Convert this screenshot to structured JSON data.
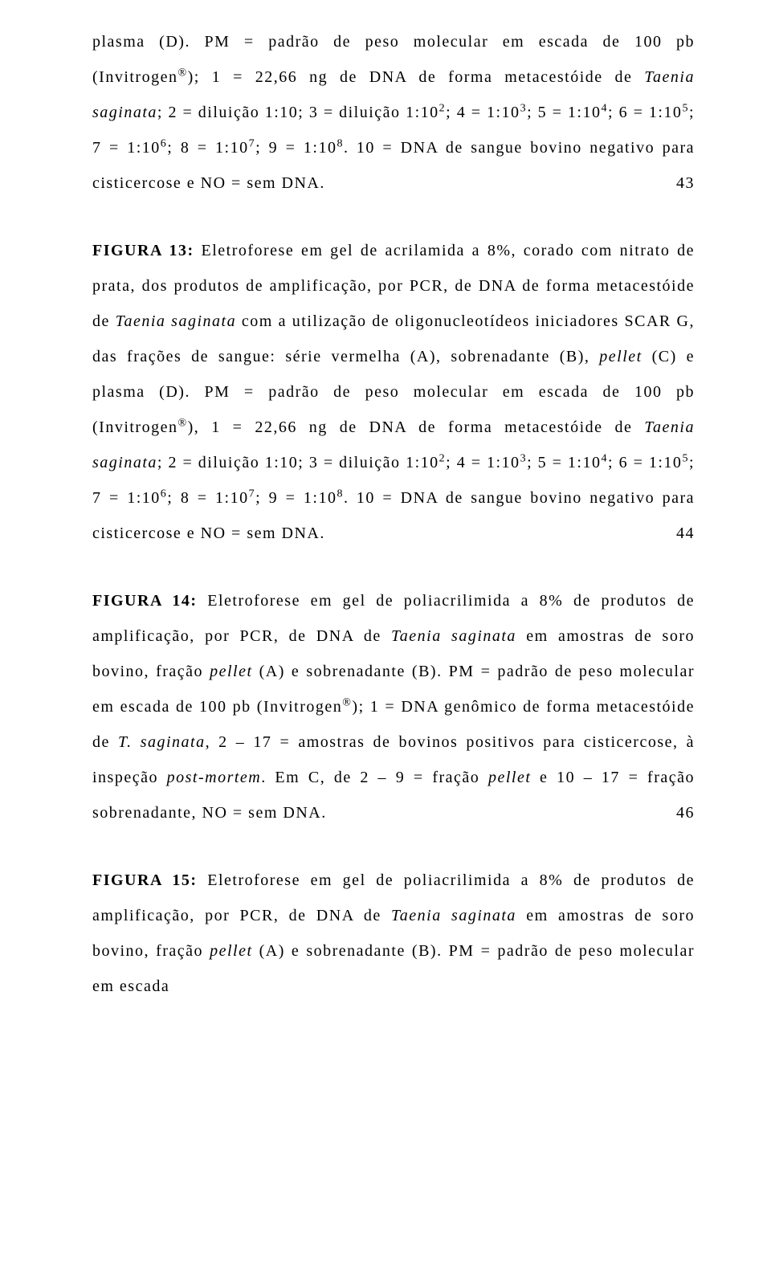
{
  "p1": {
    "t1": "plasma (D). PM = padrão de peso molecular em escada de 100 pb (Invitrogen",
    "reg": "®",
    "t2": "); 1 = 22,66 ng de DNA de forma metacestóide de ",
    "it1": "Taenia saginata",
    "t3": "; 2 = diluição 1:10; 3 = diluição 1:10",
    "s2": "2",
    "t4": "; 4 = 1:10",
    "s3": "3",
    "t5": "; 5 = 1:10",
    "s4": "4",
    "t6": "; 6 = 1:10",
    "s5": "5",
    "t7": "; 7 = 1:10",
    "s6": "6",
    "t8": "; 8 = 1:10",
    "s7": "7",
    "t9": "; 9 = 1:10",
    "s8": "8",
    "t10": ". 10 = DNA de sangue bovino negativo para cisticercose e NO = sem DNA.",
    "pn": "43"
  },
  "p2": {
    "label": "FIGURA 13:",
    "t1": " Eletroforese em gel de acrilamida a 8%, corado com nitrato de prata, dos produtos de amplificação, por PCR, de DNA de forma metacestóide de ",
    "it1": "Taenia saginata",
    "t2": " com a utilização de oligonucleotídeos iniciadores SCAR G, das frações de sangue: série vermelha (A), sobrenadante (B), ",
    "it2": "pellet",
    "t3": " (C) e plasma (D). PM = padrão de peso molecular em escada de 100 pb (Invitrogen",
    "reg": "®",
    "t4": "), 1 = 22,66 ng de DNA de forma metacestóide de ",
    "it3": "Taenia saginata",
    "t5": "; 2 = diluição 1:10; 3 = diluição 1:10",
    "s2": "2",
    "t6": "; 4 = 1:10",
    "s3": "3",
    "t7": "; 5 = 1:10",
    "s4": "4",
    "t8": "; 6 = 1:10",
    "s5": "5",
    "t9": "; 7 = 1:10",
    "s6": "6",
    "t10": "; 8 = 1:10",
    "s7": "7",
    "t11": "; 9 = 1:10",
    "s8": "8",
    "t12": ". 10 = DNA de sangue bovino negativo para cisticercose e NO = sem DNA.",
    "pn": "44"
  },
  "p3": {
    "label": "FIGURA 14:",
    "t1": " Eletroforese em gel de poliacrilimida a 8% de produtos de amplificação, por PCR, de DNA de ",
    "it1": "Taenia saginata",
    "t2": " em amostras de soro bovino, fração ",
    "it2": "pellet",
    "t3": " (A) e sobrenadante (B). PM = padrão de peso molecular em escada de 100 pb (Invitrogen",
    "reg": "®",
    "t4": "); 1 = DNA genômico de forma metacestóide de ",
    "it3": "T. saginata",
    "t5": ", 2 – 17 = amostras de bovinos positivos para cisticercose, à inspeção ",
    "it4": "post-mortem",
    "t6": ". Em C, de 2 – 9 = fração ",
    "it5": "pellet",
    "t7": " e 10 – 17 = fração sobrenadante, NO = sem DNA.",
    "pn": "46"
  },
  "p4": {
    "label": "FIGURA 15:",
    "t1": " Eletroforese em gel de poliacrilimida a 8% de produtos de amplificação, por PCR, de DNA de ",
    "it1": "Taenia saginata",
    "t2": " em amostras de soro bovino, fração ",
    "it2": "pellet",
    "t3": " (A) e sobrenadante (B). PM = padrão de peso molecular em escada"
  }
}
